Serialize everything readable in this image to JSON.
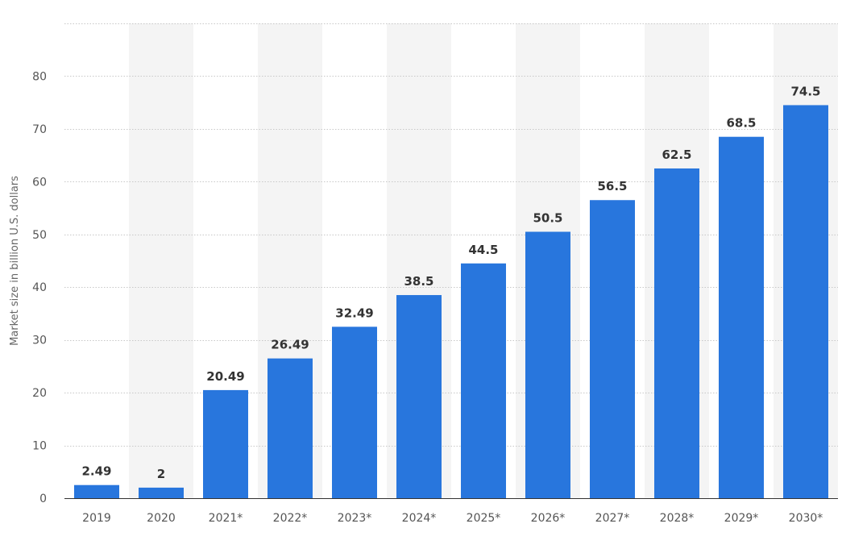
{
  "chart_data": {
    "type": "bar",
    "categories": [
      "2019",
      "2020",
      "2021*",
      "2022*",
      "2023*",
      "2024*",
      "2025*",
      "2026*",
      "2027*",
      "2028*",
      "2029*",
      "2030*"
    ],
    "values": [
      2.49,
      2,
      20.49,
      26.49,
      32.49,
      38.5,
      44.5,
      50.5,
      56.5,
      62.5,
      68.5,
      74.5
    ],
    "value_labels": [
      "2.49",
      "2",
      "20.49",
      "26.49",
      "32.49",
      "38.5",
      "44.5",
      "50.5",
      "56.5",
      "62.5",
      "68.5",
      "74.5"
    ],
    "title": "",
    "xlabel": "",
    "ylabel": "Market size in billion U.S. dollars",
    "ylim": [
      0,
      90
    ],
    "yticks": [
      0,
      10,
      20,
      30,
      40,
      50,
      60,
      70,
      80
    ],
    "grid": true,
    "grid_style": "dotted",
    "alternating_column_shading": true,
    "bar_color": "#2876DD",
    "shade_color": "#F4F4F4",
    "grid_color": "#C8C8C8",
    "axis_color": "#333333"
  }
}
